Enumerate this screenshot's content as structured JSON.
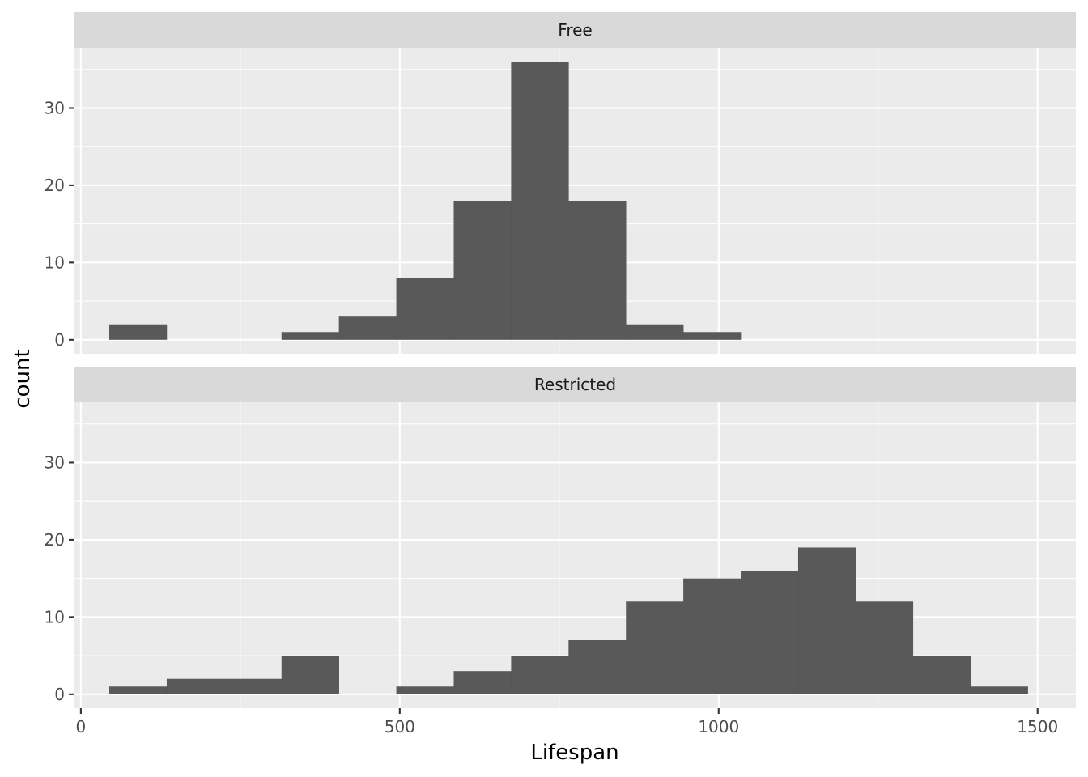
{
  "chart_data": {
    "type": "bar",
    "kind": "faceted histogram",
    "xlabel": "Lifespan",
    "ylabel": "count",
    "xlim": [
      -10,
      1560
    ],
    "ylim": [
      -1.8,
      37.8
    ],
    "x_ticks": [
      0,
      500,
      1000,
      1500
    ],
    "x_tick_labels": [
      "0",
      "500",
      "1000",
      "1500"
    ],
    "y_ticks": [
      0,
      10,
      20,
      30
    ],
    "y_tick_labels": [
      "0",
      "10",
      "20",
      "30"
    ],
    "bin_width": 90,
    "bar_color": "#595959",
    "panel_background": "#EBEBEB",
    "strip_background": "#D9D9D9",
    "grid": true,
    "legend": "none",
    "facets": [
      {
        "label": "Free",
        "bars": [
          {
            "x0": 45,
            "x1": 135,
            "count": 2
          },
          {
            "x0": 315,
            "x1": 405,
            "count": 1
          },
          {
            "x0": 405,
            "x1": 495,
            "count": 3
          },
          {
            "x0": 495,
            "x1": 585,
            "count": 8
          },
          {
            "x0": 585,
            "x1": 675,
            "count": 18
          },
          {
            "x0": 675,
            "x1": 765,
            "count": 36
          },
          {
            "x0": 765,
            "x1": 855,
            "count": 18
          },
          {
            "x0": 855,
            "x1": 945,
            "count": 2
          },
          {
            "x0": 945,
            "x1": 1035,
            "count": 1
          }
        ]
      },
      {
        "label": "Restricted",
        "bars": [
          {
            "x0": 45,
            "x1": 135,
            "count": 1
          },
          {
            "x0": 135,
            "x1": 225,
            "count": 2
          },
          {
            "x0": 225,
            "x1": 315,
            "count": 2
          },
          {
            "x0": 315,
            "x1": 405,
            "count": 5
          },
          {
            "x0": 495,
            "x1": 585,
            "count": 1
          },
          {
            "x0": 585,
            "x1": 675,
            "count": 3
          },
          {
            "x0": 675,
            "x1": 765,
            "count": 5
          },
          {
            "x0": 765,
            "x1": 855,
            "count": 7
          },
          {
            "x0": 855,
            "x1": 945,
            "count": 12
          },
          {
            "x0": 945,
            "x1": 1035,
            "count": 15
          },
          {
            "x0": 1035,
            "x1": 1125,
            "count": 16
          },
          {
            "x0": 1125,
            "x1": 1215,
            "count": 19
          },
          {
            "x0": 1215,
            "x1": 1305,
            "count": 12
          },
          {
            "x0": 1305,
            "x1": 1395,
            "count": 5
          },
          {
            "x0": 1395,
            "x1": 1485,
            "count": 1
          }
        ]
      }
    ]
  }
}
